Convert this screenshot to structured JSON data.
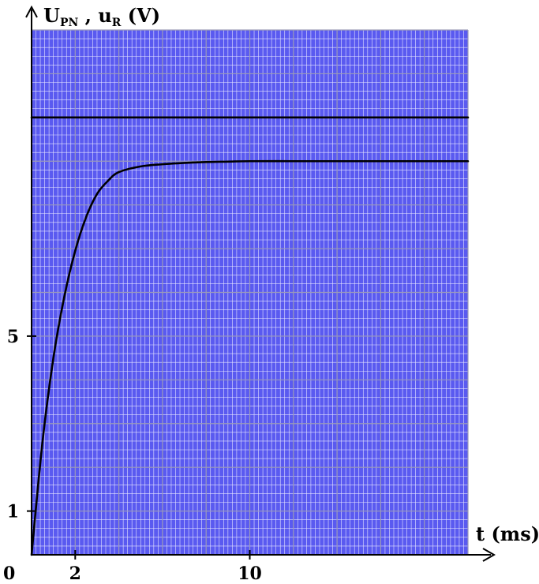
{
  "chart_data": {
    "type": "line",
    "ylabel": {
      "main1": "U",
      "sub1": "PN",
      "sep": " , ",
      "main2": "u",
      "sub2": "R",
      "unit": " (V)"
    },
    "xlabel": "t (ms)",
    "origin_label": "0",
    "x_ticks": [
      {
        "value": 2,
        "label": "2"
      },
      {
        "value": 10,
        "label": "10"
      }
    ],
    "y_ticks": [
      {
        "value": 1,
        "label": "1"
      },
      {
        "value": 5,
        "label": "5"
      }
    ],
    "xlim": [
      0,
      20
    ],
    "ylim": [
      0,
      12
    ],
    "grid": true,
    "series": [
      {
        "key": "U_PN",
        "color": "#000000",
        "x": [
          0,
          20
        ],
        "y": [
          10,
          10
        ]
      },
      {
        "key": "u_R",
        "color": "#000000",
        "x": [
          0,
          0.5,
          1,
          1.5,
          2,
          2.5,
          3,
          3.5,
          4,
          5,
          6,
          7,
          8,
          9,
          10,
          12,
          14,
          16,
          18,
          20
        ],
        "y": [
          0,
          2.58,
          4.5,
          5.9,
          6.95,
          7.72,
          8.25,
          8.55,
          8.75,
          8.88,
          8.93,
          8.96,
          8.98,
          8.99,
          9.0,
          9.0,
          9.0,
          9.0,
          9.0,
          9.0
        ]
      }
    ],
    "colors": {
      "background": "#5a5af0",
      "grid_minor": "#e6e6ff",
      "grid_major": "#9a9ab8",
      "axis": "#000000"
    }
  }
}
